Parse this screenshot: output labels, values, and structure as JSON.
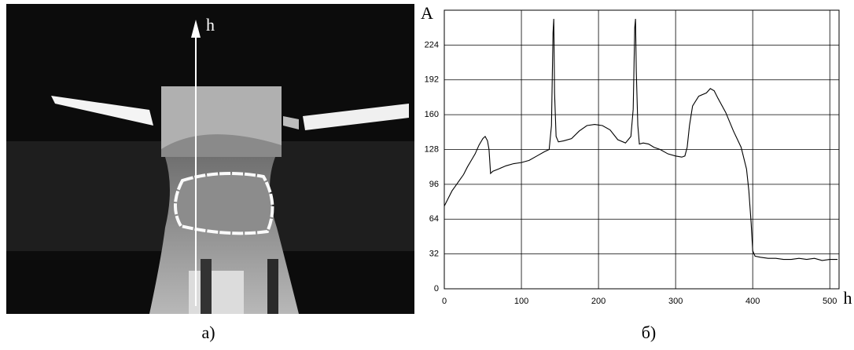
{
  "image": {
    "arrow_label": "h",
    "caption": "а)"
  },
  "chart_data": {
    "type": "line",
    "caption": "б)",
    "y_label": "A",
    "x_label": "h",
    "x": [
      0,
      5,
      10,
      15,
      20,
      25,
      30,
      35,
      40,
      45,
      50,
      53,
      56,
      58,
      60,
      63,
      70,
      80,
      90,
      100,
      110,
      120,
      130,
      136,
      139,
      141,
      142,
      143,
      145,
      148,
      155,
      165,
      175,
      185,
      195,
      205,
      215,
      225,
      235,
      242,
      245,
      247,
      248,
      249,
      251,
      253,
      258,
      265,
      272,
      280,
      290,
      300,
      308,
      312,
      315,
      318,
      322,
      330,
      340,
      345,
      350,
      355,
      365,
      375,
      385,
      392,
      395,
      398,
      400,
      403,
      410,
      420,
      430,
      440,
      450,
      460,
      470,
      480,
      490,
      500,
      510
    ],
    "values": [
      76,
      83,
      90,
      95,
      100,
      105,
      112,
      118,
      124,
      132,
      138,
      140,
      136,
      128,
      106,
      108,
      110,
      113,
      115,
      116,
      118,
      122,
      126,
      128,
      150,
      235,
      248,
      180,
      140,
      135,
      136,
      138,
      145,
      150,
      151,
      150,
      146,
      137,
      134,
      140,
      165,
      240,
      248,
      200,
      150,
      133,
      134,
      133,
      130,
      128,
      124,
      122,
      121,
      122,
      130,
      150,
      168,
      177,
      180,
      184,
      182,
      175,
      162,
      145,
      130,
      110,
      90,
      60,
      35,
      30,
      29,
      28,
      28,
      27,
      27,
      28,
      27,
      28,
      26,
      27,
      27
    ],
    "color": "#000000",
    "xlim": [
      0,
      512
    ],
    "ylim": [
      0,
      256
    ],
    "xticks": [
      0,
      100,
      200,
      300,
      400,
      500
    ],
    "yticks": [
      0,
      32,
      64,
      96,
      128,
      160,
      192,
      224
    ],
    "grid": true
  }
}
